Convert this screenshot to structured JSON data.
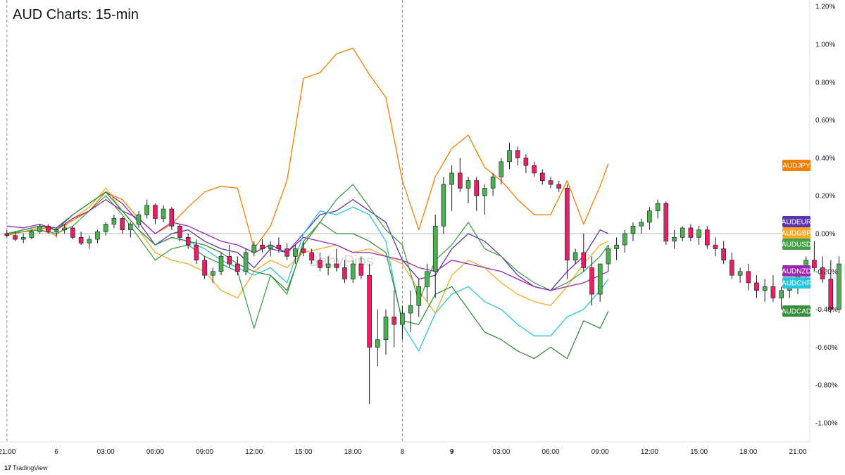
{
  "title": "AUD Charts: 15-min",
  "branding": {
    "logo_mark": "17",
    "name": "TradingView"
  },
  "watermark": "BabyPips",
  "colors": {
    "AUDJPY": "#f57c00",
    "AUDEUR": "#5e35b1",
    "AUDGBP": "#f9a825",
    "AUDUSD": "#43a047",
    "AUDNZD": "#9c27b0",
    "AUDCHF": "#26c6da",
    "AUDCAD": "#388e3c",
    "bull": "#4caf50",
    "bear": "#e91e63",
    "zero_line": "#b2b5be",
    "session_line": "#5b9bd5"
  },
  "chart_data": {
    "type": "line",
    "title": "AUD Charts: 15-min",
    "xlabel": "",
    "ylabel": "",
    "ylim": [
      -1.0,
      1.2
    ],
    "y_unit": "%",
    "ytick_labels": [
      "1.20%",
      "1.00%",
      "0.80%",
      "0.60%",
      "0.40%",
      "0.20%",
      "0.00%",
      "-0.20%",
      "-0.40%",
      "-0.60%",
      "-0.80%",
      "-1.00%"
    ],
    "x_tick_labels": [
      "21:00",
      "6",
      "03:00",
      "06:00",
      "09:00",
      "12:00",
      "15:00",
      "18:00",
      "8",
      "9",
      "03:00",
      "06:00",
      "09:00",
      "12:00",
      "15:00",
      "18:00",
      "21:00"
    ],
    "x_tick_bold": [
      "9"
    ],
    "x_hours": [
      -3,
      0,
      3,
      6,
      9,
      12,
      15,
      18,
      21,
      24,
      27,
      30,
      33,
      36,
      39,
      42,
      45
    ],
    "xlim_hours": [
      -3,
      48
    ],
    "x_note": "x values are hours from 00:00 of day 6",
    "session_separators_hours": [
      -3,
      21
    ],
    "legend_position": "right axis badges",
    "grid": false,
    "last_value_badges": [
      "AUDJPY",
      "AUDEUR",
      "AUDGBP",
      "AUDUSD",
      "AUDNZD",
      "AUDCHF",
      "AUDCAD"
    ],
    "series": [
      {
        "name": "AUDJPY",
        "color": "#f57c00",
        "x": [
          -3,
          -2,
          -1,
          0,
          1,
          2,
          3,
          4,
          5,
          6,
          7,
          8,
          9,
          10,
          11,
          12,
          13,
          14,
          15,
          16,
          17,
          18,
          19,
          20,
          21,
          21.5,
          22,
          23,
          24,
          25,
          26,
          27,
          28,
          29,
          30,
          31,
          32,
          33,
          33.5
        ],
        "y": [
          -0.01,
          0.01,
          0.03,
          0.02,
          0.07,
          0.12,
          0.22,
          0.18,
          0.08,
          0.0,
          0.05,
          0.14,
          0.22,
          0.25,
          0.24,
          -0.08,
          0.04,
          0.28,
          0.82,
          0.85,
          0.95,
          0.98,
          0.84,
          0.72,
          0.28,
          0.15,
          0.02,
          0.3,
          0.45,
          0.52,
          0.35,
          0.28,
          0.18,
          0.1,
          0.1,
          0.28,
          0.05,
          0.25,
          0.37
        ]
      },
      {
        "name": "AUDEUR",
        "color": "#5e35b1",
        "x": [
          -3,
          -2,
          -1,
          0,
          1,
          2,
          3,
          4,
          5,
          6,
          7,
          8,
          9,
          10,
          11,
          12,
          13,
          14,
          15,
          16,
          17,
          18,
          19,
          20,
          21,
          22,
          23,
          24,
          25,
          26,
          27,
          28,
          29,
          30,
          31,
          32,
          33,
          33.5
        ],
        "y": [
          0.0,
          0.02,
          0.04,
          0.03,
          0.1,
          0.16,
          0.22,
          0.16,
          0.06,
          -0.06,
          0.0,
          0.02,
          -0.04,
          -0.08,
          -0.1,
          -0.18,
          -0.08,
          -0.1,
          0.0,
          0.1,
          0.12,
          0.18,
          0.12,
          0.06,
          -0.14,
          -0.24,
          -0.22,
          -0.08,
          0.0,
          -0.04,
          -0.12,
          -0.22,
          -0.28,
          -0.3,
          -0.2,
          -0.12,
          0.02,
          0.0
        ]
      },
      {
        "name": "AUDGBP",
        "color": "#f9a825",
        "x": [
          -3,
          -2,
          -1,
          0,
          1,
          2,
          3,
          4,
          5,
          6,
          7,
          8,
          9,
          10,
          11,
          12,
          13,
          14,
          15,
          16,
          17,
          18,
          19,
          20,
          21,
          22,
          23,
          24,
          25,
          26,
          27,
          28,
          29,
          30,
          31,
          32,
          33,
          33.5
        ],
        "y": [
          0.0,
          0.01,
          0.02,
          -0.01,
          0.08,
          0.14,
          0.24,
          0.12,
          0.02,
          -0.1,
          -0.14,
          -0.16,
          -0.2,
          -0.3,
          -0.34,
          -0.2,
          -0.14,
          -0.18,
          -0.1,
          -0.08,
          -0.06,
          -0.1,
          -0.08,
          -0.12,
          -0.16,
          -0.3,
          -0.42,
          -0.22,
          -0.14,
          -0.18,
          -0.26,
          -0.32,
          -0.36,
          -0.38,
          -0.28,
          -0.16,
          -0.06,
          -0.04
        ]
      },
      {
        "name": "AUDUSD",
        "color": "#43a047",
        "x": [
          -3,
          -2,
          -1,
          0,
          1,
          2,
          3,
          4,
          5,
          6,
          7,
          8,
          9,
          10,
          11,
          12,
          13,
          14,
          15,
          16,
          17,
          18,
          19,
          20,
          21,
          22,
          23,
          24,
          25,
          26,
          27,
          28,
          29,
          30,
          31,
          32,
          33,
          33.5
        ],
        "y": [
          0.0,
          0.01,
          0.02,
          0.0,
          0.04,
          0.12,
          0.2,
          0.1,
          -0.02,
          -0.14,
          -0.08,
          -0.06,
          -0.12,
          -0.16,
          -0.2,
          -0.5,
          -0.22,
          -0.32,
          -0.04,
          0.06,
          0.18,
          0.26,
          0.14,
          0.02,
          -0.06,
          -0.36,
          -0.14,
          -0.06,
          0.06,
          -0.08,
          -0.12,
          -0.2,
          -0.26,
          -0.3,
          -0.26,
          -0.2,
          -0.12,
          -0.06
        ]
      },
      {
        "name": "AUDNZD",
        "color": "#9c27b0",
        "x": [
          -3,
          -2,
          -1,
          0,
          1,
          2,
          3,
          4,
          5,
          6,
          7,
          8,
          9,
          10,
          11,
          12,
          13,
          14,
          15,
          16,
          17,
          18,
          19,
          20,
          21,
          22,
          23,
          24,
          25,
          26,
          27,
          28,
          29,
          30,
          31,
          32,
          33,
          33.5
        ],
        "y": [
          0.04,
          0.03,
          0.05,
          0.02,
          0.08,
          0.12,
          0.18,
          0.12,
          0.08,
          0.0,
          0.06,
          0.04,
          0.0,
          -0.04,
          -0.06,
          -0.1,
          -0.06,
          -0.1,
          -0.02,
          -0.04,
          -0.06,
          -0.1,
          -0.1,
          -0.12,
          -0.14,
          -0.18,
          -0.2,
          -0.14,
          -0.16,
          -0.18,
          -0.2,
          -0.24,
          -0.28,
          -0.3,
          -0.28,
          -0.26,
          -0.22,
          -0.2
        ]
      },
      {
        "name": "AUDCHF",
        "color": "#26c6da",
        "x": [
          -3,
          -2,
          -1,
          0,
          1,
          2,
          3,
          4,
          5,
          6,
          7,
          8,
          9,
          10,
          11,
          12,
          13,
          14,
          15,
          16,
          17,
          18,
          19,
          20,
          21,
          22,
          23,
          24,
          25,
          26,
          27,
          28,
          29,
          30,
          31,
          32,
          33,
          33.5
        ],
        "y": [
          0.0,
          0.02,
          0.04,
          0.02,
          0.1,
          0.16,
          0.22,
          0.12,
          0.02,
          -0.06,
          -0.02,
          -0.04,
          -0.08,
          -0.14,
          -0.18,
          -0.22,
          -0.18,
          -0.26,
          0.0,
          0.12,
          0.1,
          0.14,
          0.1,
          -0.04,
          -0.48,
          -0.62,
          -0.42,
          -0.32,
          -0.28,
          -0.36,
          -0.4,
          -0.48,
          -0.54,
          -0.54,
          -0.44,
          -0.4,
          -0.3,
          -0.24
        ]
      },
      {
        "name": "AUDCAD",
        "color": "#388e3c",
        "x": [
          -3,
          -2,
          -1,
          0,
          1,
          2,
          3,
          4,
          5,
          6,
          7,
          8,
          9,
          10,
          11,
          12,
          13,
          14,
          15,
          16,
          17,
          18,
          19,
          20,
          21,
          22,
          23,
          24,
          25,
          26,
          27,
          28,
          29,
          30,
          31,
          32,
          33,
          33.5
        ],
        "y": [
          0.0,
          0.02,
          0.04,
          0.02,
          0.1,
          0.16,
          0.22,
          0.12,
          0.02,
          -0.06,
          -0.02,
          -0.04,
          -0.06,
          -0.1,
          -0.16,
          -0.2,
          -0.22,
          -0.3,
          -0.06,
          0.06,
          0.0,
          0.0,
          -0.04,
          -0.1,
          -0.46,
          -0.48,
          -0.32,
          -0.28,
          -0.4,
          -0.52,
          -0.56,
          -0.62,
          -0.66,
          -0.6,
          -0.66,
          -0.46,
          -0.5,
          -0.41
        ]
      }
    ],
    "candles": {
      "name": "AUDUSD",
      "interval_hours": 0.5,
      "x_start": -3,
      "ohlc": [
        [
          0.0,
          0.02,
          -0.02,
          -0.01
        ],
        [
          -0.01,
          0.01,
          -0.04,
          -0.03
        ],
        [
          -0.03,
          0.0,
          -0.05,
          -0.02
        ],
        [
          -0.02,
          0.02,
          -0.03,
          0.01
        ],
        [
          0.01,
          0.05,
          0.0,
          0.04
        ],
        [
          0.04,
          0.05,
          0.0,
          0.01
        ],
        [
          0.01,
          0.03,
          -0.02,
          0.02
        ],
        [
          0.02,
          0.05,
          0.0,
          0.03
        ],
        [
          0.03,
          0.04,
          -0.03,
          -0.02
        ],
        [
          -0.02,
          0.01,
          -0.06,
          -0.05
        ],
        [
          -0.05,
          -0.01,
          -0.08,
          -0.03
        ],
        [
          -0.03,
          0.02,
          -0.05,
          0.01
        ],
        [
          0.01,
          0.06,
          -0.01,
          0.05
        ],
        [
          0.05,
          0.1,
          0.03,
          0.08
        ],
        [
          0.08,
          0.09,
          0.0,
          0.02
        ],
        [
          0.02,
          0.06,
          -0.02,
          0.05
        ],
        [
          0.05,
          0.12,
          0.03,
          0.1
        ],
        [
          0.1,
          0.18,
          0.08,
          0.15
        ],
        [
          0.15,
          0.16,
          0.05,
          0.08
        ],
        [
          0.08,
          0.15,
          0.06,
          0.13
        ],
        [
          0.13,
          0.14,
          0.02,
          0.04
        ],
        [
          0.04,
          0.05,
          -0.04,
          -0.02
        ],
        [
          -0.02,
          0.0,
          -0.08,
          -0.06
        ],
        [
          -0.06,
          -0.03,
          -0.16,
          -0.14
        ],
        [
          -0.14,
          -0.12,
          -0.24,
          -0.22
        ],
        [
          -0.22,
          -0.18,
          -0.26,
          -0.2
        ],
        [
          -0.2,
          -0.1,
          -0.22,
          -0.12
        ],
        [
          -0.12,
          -0.06,
          -0.18,
          -0.16
        ],
        [
          -0.16,
          -0.12,
          -0.22,
          -0.2
        ],
        [
          -0.2,
          -0.08,
          -0.22,
          -0.1
        ],
        [
          -0.1,
          -0.04,
          -0.12,
          -0.06
        ],
        [
          -0.06,
          -0.03,
          -0.1,
          -0.08
        ],
        [
          -0.08,
          -0.04,
          -0.12,
          -0.06
        ],
        [
          -0.06,
          -0.02,
          -0.1,
          -0.08
        ],
        [
          -0.08,
          -0.05,
          -0.14,
          -0.12
        ],
        [
          -0.12,
          -0.06,
          -0.16,
          -0.08
        ],
        [
          -0.08,
          -0.04,
          -0.12,
          -0.1
        ],
        [
          -0.1,
          -0.08,
          -0.16,
          -0.14
        ],
        [
          -0.14,
          -0.1,
          -0.2,
          -0.18
        ],
        [
          -0.18,
          -0.12,
          -0.22,
          -0.16
        ],
        [
          -0.16,
          -0.08,
          -0.2,
          -0.18
        ],
        [
          -0.18,
          -0.14,
          -0.26,
          -0.24
        ],
        [
          -0.24,
          -0.14,
          -0.26,
          -0.16
        ],
        [
          -0.16,
          -0.12,
          -0.24,
          -0.22
        ],
        [
          -0.22,
          -0.16,
          -0.9,
          -0.6
        ],
        [
          -0.6,
          -0.4,
          -0.7,
          -0.56
        ],
        [
          -0.56,
          -0.4,
          -0.64,
          -0.44
        ],
        [
          -0.44,
          -0.3,
          -0.6,
          -0.48
        ],
        [
          -0.48,
          -0.38,
          -0.56,
          -0.42
        ],
        [
          -0.42,
          -0.3,
          -0.52,
          -0.38
        ],
        [
          -0.38,
          -0.24,
          -0.44,
          -0.28
        ],
        [
          -0.28,
          -0.16,
          -0.36,
          -0.2
        ],
        [
          -0.2,
          0.1,
          -0.34,
          0.04
        ],
        [
          0.04,
          0.3,
          0.0,
          0.26
        ],
        [
          0.26,
          0.36,
          0.12,
          0.32
        ],
        [
          0.32,
          0.4,
          0.22,
          0.24
        ],
        [
          0.24,
          0.3,
          0.16,
          0.28
        ],
        [
          0.28,
          0.3,
          0.12,
          0.2
        ],
        [
          0.2,
          0.26,
          0.1,
          0.24
        ],
        [
          0.24,
          0.32,
          0.2,
          0.3
        ],
        [
          0.3,
          0.4,
          0.26,
          0.38
        ],
        [
          0.38,
          0.48,
          0.34,
          0.44
        ],
        [
          0.44,
          0.46,
          0.36,
          0.4
        ],
        [
          0.4,
          0.42,
          0.32,
          0.36
        ],
        [
          0.36,
          0.38,
          0.3,
          0.32
        ],
        [
          0.32,
          0.34,
          0.26,
          0.28
        ],
        [
          0.28,
          0.3,
          0.24,
          0.26
        ],
        [
          0.26,
          0.28,
          0.22,
          0.24
        ],
        [
          0.24,
          0.26,
          -0.24,
          -0.14
        ],
        [
          -0.14,
          -0.08,
          -0.16,
          -0.1
        ],
        [
          -0.1,
          0.0,
          -0.2,
          -0.18
        ],
        [
          -0.18,
          -0.12,
          -0.38,
          -0.32
        ],
        [
          -0.32,
          -0.18,
          -0.36,
          -0.16
        ],
        [
          -0.16,
          -0.06,
          -0.2,
          -0.08
        ],
        [
          -0.08,
          -0.02,
          -0.14,
          -0.06
        ],
        [
          -0.06,
          0.02,
          -0.1,
          0.0
        ],
        [
          0.0,
          0.06,
          -0.04,
          0.04
        ],
        [
          0.04,
          0.08,
          0.0,
          0.06
        ],
        [
          0.06,
          0.14,
          0.02,
          0.12
        ],
        [
          0.12,
          0.18,
          0.08,
          0.16
        ],
        [
          0.16,
          0.17,
          -0.06,
          -0.04
        ],
        [
          -0.04,
          0.02,
          -0.08,
          -0.02
        ],
        [
          -0.02,
          0.04,
          -0.04,
          0.03
        ],
        [
          0.03,
          0.05,
          -0.04,
          -0.02
        ],
        [
          -0.02,
          0.04,
          -0.06,
          0.02
        ],
        [
          0.02,
          0.04,
          -0.08,
          -0.06
        ],
        [
          -0.06,
          -0.02,
          -0.12,
          -0.08
        ],
        [
          -0.08,
          -0.04,
          -0.16,
          -0.14
        ],
        [
          -0.14,
          -0.1,
          -0.24,
          -0.22
        ],
        [
          -0.22,
          -0.18,
          -0.26,
          -0.2
        ],
        [
          -0.2,
          -0.16,
          -0.3,
          -0.26
        ],
        [
          -0.26,
          -0.22,
          -0.34,
          -0.3
        ],
        [
          -0.3,
          -0.24,
          -0.36,
          -0.28
        ],
        [
          -0.28,
          -0.22,
          -0.36,
          -0.34
        ],
        [
          -0.34,
          -0.28,
          -0.4,
          -0.3
        ],
        [
          -0.3,
          -0.24,
          -0.34,
          -0.28
        ],
        [
          -0.28,
          -0.2,
          -0.32,
          -0.22
        ],
        [
          -0.22,
          -0.12,
          -0.26,
          -0.14
        ],
        [
          -0.14,
          -0.04,
          -0.2,
          -0.18
        ],
        [
          -0.18,
          -0.12,
          -0.26,
          -0.24
        ],
        [
          -0.24,
          -0.14,
          -0.42,
          -0.4
        ],
        [
          -0.4,
          -0.12,
          -0.42,
          -0.16
        ],
        [
          -0.16,
          -0.1,
          -0.26,
          -0.24
        ],
        [
          -0.24,
          -0.16,
          -0.28,
          -0.18
        ],
        [
          -0.18,
          -0.14,
          -0.24,
          -0.22
        ],
        [
          -0.22,
          -0.12,
          -0.24,
          -0.14
        ],
        [
          -0.14,
          -0.08,
          -0.2,
          -0.1
        ],
        [
          -0.1,
          -0.02,
          -0.14,
          -0.04
        ]
      ]
    }
  }
}
